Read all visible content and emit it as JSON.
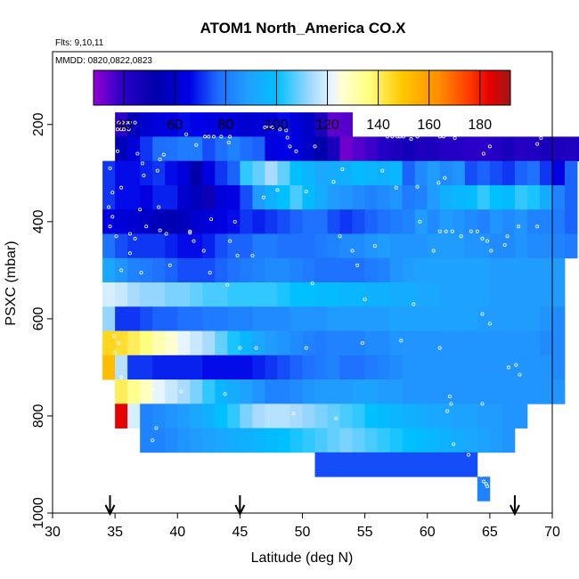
{
  "chart_data": {
    "type": "heatmap",
    "title": "ATOM1 North_America CO.X",
    "flights_label": "Flts: 9,10,11",
    "dates_label": "MMDD: 0820,0822,0823",
    "xlabel": "Latitude (deg N)",
    "ylabel": "PSXC (mbar)",
    "xlim": [
      30,
      70
    ],
    "ylim": [
      1000,
      50
    ],
    "x_ticks": [
      30,
      35,
      40,
      45,
      50,
      55,
      60,
      65,
      70
    ],
    "y_ticks": [
      200,
      400,
      600,
      800,
      1000
    ],
    "colorbar": {
      "range": [
        28,
        192
      ],
      "ticks": [
        40,
        60,
        80,
        100,
        120,
        140,
        160,
        180
      ]
    },
    "cell_latitude_width": 1,
    "cell_pressure_height": 50,
    "arrow_latitudes": [
      34.6,
      45,
      67
    ],
    "rows": [
      {
        "p": 200,
        "lat_start": 35,
        "values": [
          40,
          55,
          60,
          62,
          64,
          66,
          65,
          64,
          63,
          62,
          60,
          61,
          62,
          66,
          62,
          58,
          44,
          34,
          35
        ]
      },
      {
        "p": 250,
        "lat_start": 35,
        "values": [
          55,
          62,
          70,
          75,
          76,
          78,
          78,
          72,
          75,
          80,
          75,
          74,
          64,
          65,
          63,
          58,
          52,
          45,
          32,
          35,
          38,
          42,
          44,
          46,
          44,
          44,
          42,
          42,
          40,
          40,
          42,
          45,
          42,
          43,
          45,
          44,
          43,
          45
        ]
      },
      {
        "p": 300,
        "lat_start": 34,
        "values": [
          70,
          66,
          66,
          68,
          70,
          66,
          62,
          52,
          64,
          70,
          74,
          104,
          108,
          114,
          108,
          100,
          96,
          90,
          92,
          94,
          98,
          96,
          94,
          96,
          74,
          82,
          86,
          82,
          84,
          72,
          74,
          72,
          70,
          74,
          76,
          70,
          64,
          74
        ]
      },
      {
        "p": 350,
        "lat_start": 34,
        "values": [
          70,
          66,
          66,
          64,
          68,
          68,
          60,
          56,
          48,
          62,
          64,
          72,
          86,
          94,
          100,
          106,
          98,
          92,
          86,
          84,
          82,
          80,
          82,
          84,
          78,
          80,
          86,
          94,
          96,
          98,
          104,
          100,
          98,
          104,
          102,
          92,
          80,
          74
        ]
      },
      {
        "p": 400,
        "lat_start": 34,
        "values": [
          64,
          62,
          60,
          58,
          56,
          54,
          56,
          60,
          62,
          64,
          66,
          70,
          68,
          70,
          72,
          74,
          76,
          76,
          72,
          70,
          72,
          74,
          76,
          78,
          80,
          86,
          82,
          86,
          84,
          82,
          80,
          84,
          82,
          84,
          80,
          80,
          78,
          74
        ]
      },
      {
        "p": 450,
        "lat_start": 34,
        "values": [
          76,
          72,
          70,
          70,
          70,
          68,
          66,
          66,
          68,
          72,
          74,
          74,
          78,
          78,
          76,
          76,
          76,
          78,
          80,
          82,
          82,
          84,
          86,
          84,
          84,
          84,
          86,
          86,
          86,
          84,
          84,
          82,
          82,
          84,
          82,
          82,
          80,
          78
        ]
      },
      {
        "p": 500,
        "lat_start": 34,
        "values": [
          90,
          84,
          80,
          78,
          76,
          74,
          72,
          72,
          72,
          74,
          76,
          78,
          80,
          82,
          82,
          80,
          78,
          76,
          76,
          76,
          76,
          78,
          80,
          84,
          86,
          88,
          88,
          88,
          88,
          88,
          88,
          86,
          86,
          86,
          86,
          86,
          86
        ]
      },
      {
        "p": 550,
        "lat_start": 34,
        "values": [
          120,
          118,
          114,
          112,
          112,
          110,
          110,
          108,
          106,
          106,
          104,
          104,
          104,
          104,
          102,
          100,
          100,
          98,
          98,
          96,
          96,
          94,
          94,
          92,
          92,
          90,
          90,
          88,
          88,
          88,
          88,
          86,
          86,
          86,
          86,
          86,
          86
        ]
      },
      {
        "p": 600,
        "lat_start": 34,
        "values": [
          112,
          70,
          70,
          72,
          74,
          74,
          76,
          76,
          78,
          78,
          80,
          80,
          82,
          82,
          82,
          84,
          84,
          84,
          86,
          86,
          86,
          86,
          86,
          88,
          88,
          88,
          88,
          88,
          88,
          88,
          86,
          86,
          86,
          86,
          86,
          84,
          82
        ]
      },
      {
        "p": 650,
        "lat_start": 34,
        "values": [
          146,
          144,
          140,
          136,
          130,
          126,
          122,
          118,
          114,
          108,
          102,
          96,
          90,
          86,
          84,
          82,
          80,
          78,
          80,
          80,
          80,
          82,
          82,
          84,
          84,
          84,
          84,
          84,
          84,
          84,
          84,
          84,
          84,
          84,
          84,
          82,
          82
        ]
      },
      {
        "p": 700,
        "lat_start": 34,
        "values": [
          152,
          116,
          70,
          70,
          68,
          68,
          68,
          68,
          66,
          66,
          66,
          66,
          68,
          70,
          72,
          74,
          76,
          78,
          80,
          76,
          76,
          78,
          80,
          82,
          84,
          84,
          84,
          84,
          84,
          84,
          84,
          84,
          84,
          84,
          84,
          84,
          82
        ]
      },
      {
        "p": 750,
        "lat_start": 35,
        "values": [
          140,
          134,
          128,
          122,
          118,
          114,
          110,
          104,
          96,
          92,
          88,
          84,
          80,
          80,
          82,
          84,
          86,
          86,
          86,
          88,
          88,
          86,
          86,
          84,
          84,
          84,
          84,
          84,
          84,
          84,
          84,
          84,
          84,
          84,
          84,
          84
        ]
      },
      {
        "p": 800,
        "lat_start": 35,
        "values": [
          184,
          120,
          80,
          82,
          84,
          86,
          90,
          94,
          100,
          104,
          110,
          114,
          116,
          116,
          114,
          112,
          110,
          108,
          106,
          104,
          100,
          98,
          96,
          94,
          92,
          90,
          90,
          88,
          88,
          86,
          86,
          84,
          84
        ]
      },
      {
        "p": 850,
        "lat_start": 37,
        "values": [
          80,
          80,
          82,
          84,
          86,
          88,
          90,
          92,
          94,
          96,
          98,
          100,
          102,
          104,
          106,
          108,
          110,
          108,
          106,
          104,
          102,
          100,
          98,
          96,
          94,
          92,
          90,
          88,
          86,
          84
        ]
      },
      {
        "p": 900,
        "lat_start": 51,
        "values": [
          72,
          72,
          72,
          72,
          72,
          72,
          72,
          72,
          72,
          72,
          72,
          72,
          72
        ]
      },
      {
        "p": 950,
        "lat_start": 64,
        "values": [
          80
        ]
      }
    ],
    "samples": [
      [
        35.3,
        196
      ],
      [
        35.6,
        196
      ],
      [
        35.9,
        196
      ],
      [
        36.2,
        196
      ],
      [
        36.6,
        196
      ],
      [
        35.2,
        210
      ],
      [
        35.5,
        210
      ],
      [
        35.7,
        210
      ],
      [
        36.1,
        210
      ],
      [
        42.2,
        225
      ],
      [
        42.5,
        225
      ],
      [
        42.9,
        225
      ],
      [
        43.5,
        225
      ],
      [
        44.2,
        225
      ],
      [
        47.0,
        206
      ],
      [
        47.3,
        206
      ],
      [
        47.6,
        206
      ],
      [
        48.2,
        210
      ],
      [
        48.7,
        212
      ],
      [
        40.7,
        220
      ],
      [
        41.5,
        242
      ],
      [
        44.1,
        237
      ],
      [
        48.8,
        227
      ],
      [
        49.0,
        245
      ],
      [
        49.5,
        255
      ],
      [
        51.0,
        245
      ],
      [
        56.8,
        225
      ],
      [
        57.2,
        225
      ],
      [
        57.6,
        225
      ],
      [
        57.8,
        225
      ],
      [
        58.1,
        225
      ],
      [
        58.7,
        230
      ],
      [
        59.2,
        225
      ],
      [
        61.0,
        225
      ],
      [
        61.3,
        225
      ],
      [
        62.2,
        228
      ],
      [
        69.1,
        228
      ],
      [
        68.8,
        240
      ],
      [
        65.0,
        245
      ],
      [
        64.5,
        260
      ],
      [
        35.2,
        255
      ],
      [
        36.8,
        260
      ],
      [
        38.9,
        262
      ],
      [
        38.6,
        272
      ],
      [
        37.2,
        280
      ],
      [
        34.6,
        290
      ],
      [
        37.3,
        305
      ],
      [
        38.4,
        295
      ],
      [
        35.5,
        330
      ],
      [
        34.8,
        340
      ],
      [
        34.5,
        370
      ],
      [
        37.0,
        375
      ],
      [
        38.5,
        370
      ],
      [
        34.8,
        390
      ],
      [
        34.6,
        410
      ],
      [
        37.5,
        410
      ],
      [
        38.6,
        418
      ],
      [
        35.1,
        430
      ],
      [
        36.2,
        425
      ],
      [
        39.1,
        425
      ],
      [
        41.0,
        423
      ],
      [
        41.3,
        440
      ],
      [
        44.2,
        440
      ],
      [
        42.1,
        460
      ],
      [
        44.8,
        470
      ],
      [
        54.0,
        460
      ],
      [
        54.4,
        490
      ],
      [
        46.0,
        470
      ],
      [
        53.0,
        430
      ],
      [
        55.8,
        450
      ],
      [
        60.5,
        460
      ],
      [
        59.4,
        400
      ],
      [
        61.0,
        420
      ],
      [
        61.5,
        420
      ],
      [
        62.0,
        420
      ],
      [
        62.7,
        430
      ],
      [
        63.5,
        420
      ],
      [
        64.0,
        420
      ],
      [
        64.4,
        435
      ],
      [
        64.8,
        440
      ],
      [
        65.1,
        460
      ],
      [
        66.2,
        448
      ],
      [
        68.8,
        410
      ],
      [
        67.3,
        410
      ],
      [
        66.4,
        430
      ],
      [
        60.9,
        320
      ],
      [
        61.4,
        310
      ],
      [
        57.5,
        330
      ],
      [
        59.2,
        328
      ],
      [
        50.3,
        338
      ],
      [
        53.2,
        292
      ],
      [
        56.4,
        295
      ],
      [
        52.5,
        318
      ],
      [
        48.0,
        335
      ],
      [
        46.9,
        350
      ],
      [
        44.6,
        400
      ],
      [
        42.7,
        395
      ],
      [
        41.0,
        420
      ],
      [
        36.6,
        435
      ],
      [
        36.2,
        465
      ],
      [
        35.5,
        500
      ],
      [
        39.4,
        490
      ],
      [
        37.1,
        505
      ],
      [
        42.6,
        505
      ],
      [
        44.0,
        530
      ],
      [
        50.8,
        527
      ],
      [
        55.0,
        560
      ],
      [
        65.0,
        610
      ],
      [
        64.4,
        590
      ],
      [
        58.9,
        570
      ],
      [
        34.9,
        635
      ],
      [
        35.3,
        650
      ],
      [
        35.0,
        670
      ],
      [
        45.0,
        660
      ],
      [
        46.3,
        660
      ],
      [
        50.3,
        660
      ],
      [
        54.8,
        650
      ],
      [
        57.9,
        645
      ],
      [
        61.0,
        660
      ],
      [
        67.1,
        695
      ],
      [
        66.5,
        700
      ],
      [
        67.4,
        715
      ],
      [
        35.5,
        720
      ],
      [
        38.1,
        745
      ],
      [
        40.3,
        750
      ],
      [
        43.8,
        755
      ],
      [
        61.6,
        790
      ],
      [
        61.8,
        760
      ],
      [
        61.9,
        775
      ],
      [
        64.4,
        775
      ],
      [
        38.3,
        825
      ],
      [
        38.0,
        850
      ],
      [
        49.3,
        795
      ],
      [
        52.7,
        805
      ],
      [
        62.1,
        858
      ],
      [
        63.3,
        880
      ],
      [
        64.3,
        922
      ],
      [
        64.5,
        935
      ],
      [
        64.7,
        940
      ],
      [
        64.8,
        945
      ]
    ]
  }
}
